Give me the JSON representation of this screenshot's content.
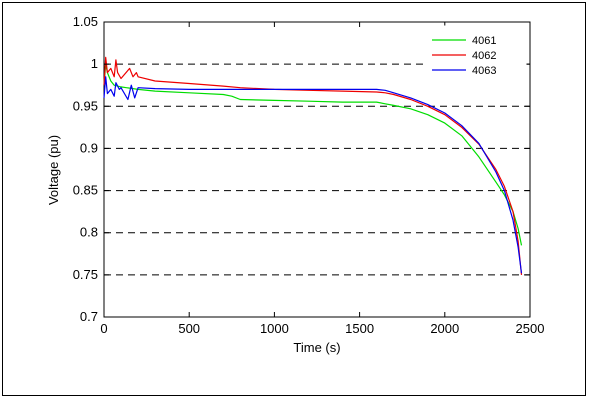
{
  "chart_data": {
    "type": "line",
    "title": "",
    "xlabel": "Time (s)",
    "ylabel": "Voltage (pu)",
    "xlim": [
      0,
      2500
    ],
    "ylim": [
      0.7,
      1.05
    ],
    "xticks": [
      0,
      500,
      1000,
      1500,
      2000,
      2500
    ],
    "yticks": [
      0.7,
      0.75,
      0.8,
      0.85,
      0.9,
      0.95,
      1,
      1.05
    ],
    "xtick_labels": [
      "0",
      "500",
      "1000",
      "1500",
      "2000",
      "2500"
    ],
    "ytick_labels": [
      "0.7",
      "0.75",
      "0.8",
      "0.85",
      "0.9",
      "0.95",
      "1",
      "1.05"
    ],
    "grid": "horizontal dashed",
    "legend_position": "top-right",
    "series": [
      {
        "name": "4061",
        "color": "#00dd00",
        "x": [
          0,
          10,
          20,
          40,
          60,
          100,
          200,
          300,
          500,
          700,
          750,
          800,
          1000,
          1200,
          1400,
          1600,
          1650,
          1700,
          1800,
          1900,
          2000,
          2100,
          2200,
          2300,
          2350,
          2400,
          2430,
          2450
        ],
        "y": [
          0.975,
          1.0,
          0.99,
          0.98,
          0.975,
          0.973,
          0.97,
          0.968,
          0.966,
          0.964,
          0.962,
          0.958,
          0.957,
          0.956,
          0.955,
          0.955,
          0.953,
          0.951,
          0.947,
          0.94,
          0.93,
          0.915,
          0.89,
          0.86,
          0.845,
          0.825,
          0.805,
          0.785
        ]
      },
      {
        "name": "4062",
        "color": "#ee0000",
        "x": [
          0,
          10,
          20,
          40,
          60,
          70,
          80,
          100,
          150,
          170,
          190,
          200,
          300,
          500,
          700,
          800,
          1000,
          1200,
          1400,
          1600,
          1650,
          1700,
          1800,
          1900,
          2000,
          2100,
          2200,
          2300,
          2350,
          2400,
          2430,
          2450
        ],
        "y": [
          0.975,
          1.008,
          0.99,
          0.995,
          0.985,
          1.005,
          0.99,
          0.983,
          0.995,
          0.985,
          0.99,
          0.985,
          0.98,
          0.977,
          0.974,
          0.972,
          0.97,
          0.969,
          0.968,
          0.967,
          0.966,
          0.964,
          0.958,
          0.95,
          0.94,
          0.925,
          0.905,
          0.875,
          0.855,
          0.825,
          0.79,
          0.75
        ]
      },
      {
        "name": "4063",
        "color": "#0000ee",
        "x": [
          0,
          10,
          20,
          40,
          60,
          70,
          90,
          100,
          140,
          160,
          180,
          200,
          300,
          500,
          700,
          800,
          1000,
          1200,
          1400,
          1600,
          1650,
          1700,
          1800,
          1900,
          2000,
          2100,
          2200,
          2300,
          2350,
          2400,
          2430,
          2450
        ],
        "y": [
          0.96,
          0.985,
          0.965,
          0.97,
          0.962,
          0.978,
          0.97,
          0.972,
          0.958,
          0.975,
          0.96,
          0.972,
          0.971,
          0.97,
          0.97,
          0.97,
          0.97,
          0.97,
          0.97,
          0.97,
          0.969,
          0.966,
          0.96,
          0.952,
          0.942,
          0.927,
          0.906,
          0.872,
          0.85,
          0.815,
          0.783,
          0.752
        ]
      }
    ]
  }
}
